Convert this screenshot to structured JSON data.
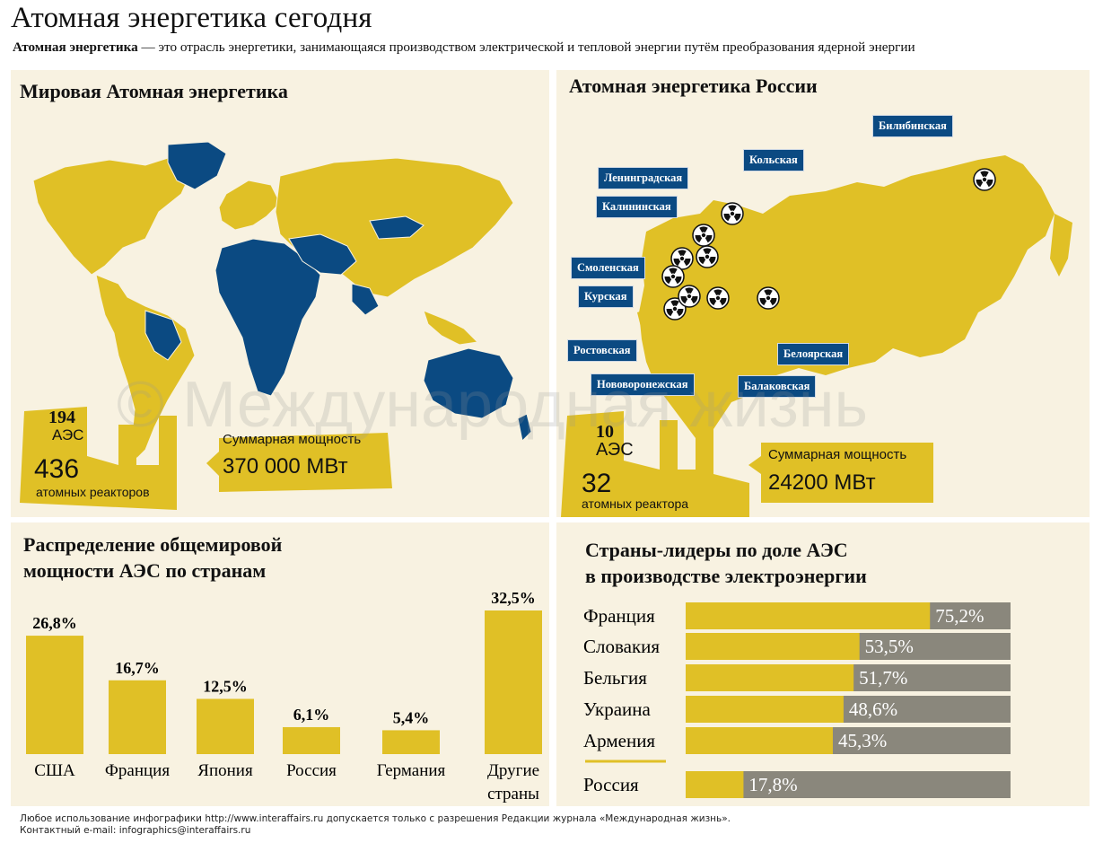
{
  "header": {
    "title": "Атомная энергетика сегодня",
    "subtitle_bold": "Атомная энергетика",
    "subtitle_rest": " — это отрасль энергетики, занимающаяся производством электрической и тепловой энергии путём преобразования ядерной энергии"
  },
  "colors": {
    "gold": "#e0c026",
    "blue": "#0b4a82",
    "gray": "#8a877c",
    "panel": "#f8f2e1"
  },
  "world": {
    "title": "Мировая Атомная энергетика",
    "plants_count": "194",
    "plants_label": "АЭС",
    "reactors_count": "436",
    "reactors_label": "атомных реакторов",
    "capacity_label": "Суммарная мощность",
    "capacity_value": "370 000 МВт"
  },
  "russia": {
    "title": "Атомная энергетика России",
    "plants_count": "10",
    "plants_label": "АЭС",
    "reactors_count": "32",
    "reactors_label": "атомных реактора",
    "capacity_label": "Суммарная мощность",
    "capacity_value": "24200 МВт",
    "stations": [
      "Билибинская",
      "Кольская",
      "Ленинградская",
      "Калининская",
      "Смоленская",
      "Курская",
      "Ростовская",
      "Нововоронежская",
      "Балаковская",
      "Белоярская"
    ]
  },
  "watermark": "© Международная жизнь",
  "distribution": {
    "title_line1": "Распределение общемировой",
    "title_line2": "мощности АЭС по странам"
  },
  "leaders": {
    "title_line1": "Страны-лидеры по доле АЭС",
    "title_line2": "в производстве электроэнергии"
  },
  "chart_data": [
    {
      "type": "bar",
      "title": "Распределение общемировой мощности АЭС по странам",
      "categories": [
        "США",
        "Франция",
        "Япония",
        "Россия",
        "Германия",
        "Другие страны"
      ],
      "values": [
        26.8,
        16.7,
        12.5,
        6.1,
        5.4,
        32.5
      ],
      "value_labels": [
        "26,8%",
        "16,7%",
        "12,5%",
        "6,1%",
        "5,4%",
        "32,5%"
      ],
      "unit": "%",
      "ylim": [
        0,
        32.5
      ]
    },
    {
      "type": "bar",
      "orientation": "horizontal",
      "title": "Страны-лидеры по доле АЭС в производстве электроэнергии",
      "categories": [
        "Франция",
        "Словакия",
        "Бельгия",
        "Украина",
        "Армения",
        "Россия"
      ],
      "values": [
        75.2,
        53.5,
        51.7,
        48.6,
        45.3,
        17.8
      ],
      "value_labels": [
        "75,2%",
        "53,5%",
        "51,7%",
        "48,6%",
        "45,3%",
        "17,8%"
      ],
      "unit": "%",
      "xlim": [
        0,
        100
      ]
    }
  ],
  "footer": {
    "line1": "Любое использование инфографики http://www.interaffairs.ru допускается только с разрешения Редакции журнала «Международная жизнь».",
    "line2": "Контактный e-mail: infographics@interaffairs.ru"
  }
}
